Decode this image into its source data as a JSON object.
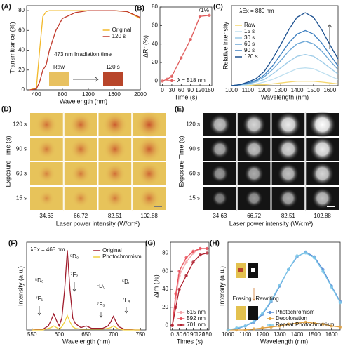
{
  "chart_data": [
    {
      "type": "line",
      "panel": "(A)",
      "xlabel": "Wavelength (nm)",
      "ylabel": "Transmittance (%)",
      "x": [
        300,
        400,
        450,
        500,
        550,
        600,
        700,
        800,
        1000,
        1200,
        1600,
        1800,
        2000
      ],
      "series": [
        {
          "name": "Original",
          "color": "#f2b829",
          "values": [
            0,
            2,
            40,
            74,
            79,
            80,
            80,
            80,
            80,
            80,
            80,
            79,
            72
          ]
        },
        {
          "name": "120 s",
          "color": "#c0392b",
          "values": [
            0,
            1,
            8,
            20,
            25,
            40,
            60,
            72,
            78,
            80,
            80,
            79,
            73
          ]
        }
      ],
      "xlim": [
        250,
        2000
      ],
      "ylim": [
        0,
        85
      ],
      "xticks": [
        400,
        800,
        1200,
        1600,
        2000
      ],
      "yticks": [
        0,
        20,
        40,
        60,
        80
      ],
      "legend": "center-right",
      "markers": false,
      "annotations": [
        "473 nm Irradiation time",
        "Raw",
        "120 s"
      ]
    },
    {
      "type": "line",
      "panel": "(B)",
      "xlabel": "Time (s)",
      "ylabel": "ΔRr (%)",
      "x": [
        0,
        15,
        30,
        60,
        90,
        120,
        150
      ],
      "series": [
        {
          "name": "λ = 518 nm",
          "color": "#e05a5a",
          "values": [
            0,
            2,
            5,
            25,
            45,
            70,
            71
          ]
        }
      ],
      "xlim": [
        -8,
        158
      ],
      "ylim": [
        -5,
        80
      ],
      "xticks": [
        0,
        30,
        60,
        90,
        120,
        150
      ],
      "yticks": [
        0,
        20,
        40,
        60,
        80
      ],
      "legend": "lower-right",
      "markers": true,
      "annotations": [
        "71%"
      ]
    },
    {
      "type": "line",
      "panel": "(C)",
      "xlabel": "Wavelength (nm)",
      "ylabel": "Relative intensity",
      "x": [
        1000,
        1050,
        1100,
        1150,
        1200,
        1250,
        1300,
        1350,
        1400,
        1450,
        1500,
        1550,
        1600,
        1650
      ],
      "series": [
        {
          "name": "Raw",
          "color": "#f5d76e",
          "values": [
            0,
            0,
            0,
            0.01,
            0.01,
            0.02,
            0.03,
            0.04,
            0.05,
            0.05,
            0.05,
            0.04,
            0.03,
            0.02
          ]
        },
        {
          "name": "15 s",
          "color": "#bfe0f0",
          "values": [
            0,
            0,
            0.01,
            0.02,
            0.04,
            0.07,
            0.11,
            0.15,
            0.19,
            0.2,
            0.19,
            0.15,
            0.11,
            0.07
          ]
        },
        {
          "name": "30 s",
          "color": "#9ccbe8",
          "values": [
            0,
            0.01,
            0.02,
            0.04,
            0.07,
            0.13,
            0.2,
            0.27,
            0.33,
            0.35,
            0.33,
            0.27,
            0.2,
            0.13
          ]
        },
        {
          "name": "60 s",
          "color": "#6aa6d6",
          "values": [
            0,
            0.01,
            0.02,
            0.05,
            0.1,
            0.18,
            0.28,
            0.39,
            0.47,
            0.5,
            0.47,
            0.39,
            0.28,
            0.18
          ]
        },
        {
          "name": "90 s",
          "color": "#3d7fc0",
          "values": [
            0,
            0.01,
            0.03,
            0.06,
            0.12,
            0.22,
            0.35,
            0.48,
            0.58,
            0.62,
            0.58,
            0.48,
            0.35,
            0.22
          ]
        },
        {
          "name": "120 s",
          "color": "#1a4f8f",
          "values": [
            0,
            0.01,
            0.04,
            0.08,
            0.16,
            0.3,
            0.46,
            0.63,
            0.77,
            0.82,
            0.77,
            0.63,
            0.46,
            0.3
          ]
        }
      ],
      "xlim": [
        1000,
        1650
      ],
      "ylim": [
        0,
        0.9
      ],
      "xticks": [
        1000,
        1100,
        1200,
        1300,
        1400,
        1500,
        1600
      ],
      "legend": "upper-left",
      "markers": false,
      "annotations": [
        "λEx = 880 nm"
      ]
    },
    {
      "type": "image-grid",
      "panel": "(D)",
      "xlabel": "Laser power intensity (W/cm²)",
      "ylabel": "Exposure Time (s)",
      "rows": [
        "120 s",
        "90 s",
        "60 s",
        "15 s"
      ],
      "columns": [
        34.63,
        66.72,
        82.51,
        102.88
      ],
      "style": "color"
    },
    {
      "type": "image-grid",
      "panel": "(E)",
      "xlabel": "Laser power intensity (W/cm²)",
      "ylabel": "Exposure Time (s)",
      "rows": [
        "120 s",
        "90 s",
        "60 s",
        "15 s"
      ],
      "columns": [
        34.63,
        66.72,
        82.51,
        102.88
      ],
      "style": "gray"
    },
    {
      "type": "line",
      "panel": "(F)",
      "xlabel": "Wavelength (nm)",
      "ylabel": "Intensity (a.u.)",
      "x": [
        550,
        570,
        580,
        585,
        590,
        595,
        600,
        605,
        610,
        615,
        620,
        625,
        630,
        640,
        650,
        660,
        680,
        690,
        695,
        700,
        705,
        710,
        720,
        740,
        750
      ],
      "series": [
        {
          "name": "Original",
          "color": "#a01c2c",
          "values": [
            0,
            0.01,
            0.05,
            0.12,
            0.2,
            0.12,
            0.05,
            0.15,
            0.5,
            1.0,
            0.5,
            0.15,
            0.08,
            0.03,
            0.05,
            0.02,
            0.02,
            0.05,
            0.1,
            0.17,
            0.1,
            0.04,
            0.01,
            0,
            0
          ]
        },
        {
          "name": "Photochromism",
          "color": "#f0d040",
          "values": [
            0,
            0,
            0.02,
            0.03,
            0.05,
            0.03,
            0.01,
            0.04,
            0.1,
            0.18,
            0.1,
            0.04,
            0.02,
            0.01,
            0.01,
            0.01,
            0.01,
            0.02,
            0.03,
            0.05,
            0.03,
            0.01,
            0,
            0,
            0
          ]
        }
      ],
      "xlim": [
        540,
        760
      ],
      "ylim": [
        0,
        1.1
      ],
      "xticks": [
        550,
        600,
        650,
        700,
        750
      ],
      "legend": "upper-right",
      "markers": false,
      "annotations": [
        "λEx = 465 nm",
        "⁵D₀",
        "⁷F₁",
        "⁵D₀",
        "⁷F₂",
        "⁵D₀",
        "⁷F₃",
        "⁵D₀",
        "⁷F₄"
      ]
    },
    {
      "type": "line",
      "panel": "(G)",
      "xlabel": "Times (s)",
      "ylabel": "ΔIm (%)",
      "x": [
        0,
        15,
        30,
        60,
        90,
        120,
        150
      ],
      "series": [
        {
          "name": "615 nm",
          "color": "#f4a3a8",
          "values": [
            0,
            30,
            55,
            70,
            80,
            85,
            85
          ]
        },
        {
          "name": "592 nm",
          "color": "#e8505b",
          "values": [
            0,
            35,
            60,
            75,
            82,
            85,
            85
          ]
        },
        {
          "name": "701 nm",
          "color": "#b0202f",
          "values": [
            0,
            20,
            40,
            55,
            70,
            78,
            80
          ]
        }
      ],
      "xlim": [
        -8,
        158
      ],
      "ylim": [
        -5,
        92
      ],
      "xticks": [
        0,
        30,
        60,
        90,
        120,
        150
      ],
      "yticks": [
        0,
        20,
        40,
        60,
        80
      ],
      "legend": "lower-right",
      "markers": true
    },
    {
      "type": "line",
      "panel": "(H)",
      "xlabel": "Wavelength (nm)",
      "ylabel": "Intensity (a.u.)",
      "x": [
        1000,
        1050,
        1100,
        1150,
        1200,
        1250,
        1300,
        1350,
        1400,
        1450,
        1500,
        1550,
        1600,
        1650
      ],
      "series": [
        {
          "name": "Photochromism",
          "color": "#5b8fd6",
          "values": [
            0,
            0.01,
            0.04,
            0.08,
            0.16,
            0.29,
            0.45,
            0.62,
            0.75,
            0.8,
            0.75,
            0.62,
            0.45,
            0.29
          ]
        },
        {
          "name": "Decoloration",
          "color": "#e0a040",
          "values": [
            0,
            0,
            0,
            0.01,
            0.02,
            0.03,
            0.04,
            0.06,
            0.07,
            0.08,
            0.07,
            0.06,
            0.04,
            0.03
          ]
        },
        {
          "name": "Repeat Photochromism",
          "color": "#7cc7e8",
          "values": [
            0,
            0.02,
            0.04,
            0.09,
            0.17,
            0.3,
            0.46,
            0.62,
            0.76,
            0.79,
            0.74,
            0.6,
            0.44,
            0.28
          ]
        }
      ],
      "xlim": [
        1000,
        1650
      ],
      "ylim": [
        0,
        0.9
      ],
      "xticks": [
        1000,
        1100,
        1200,
        1300,
        1400,
        1500,
        1600
      ],
      "legend": "lower-right",
      "markers": true,
      "annotations": [
        "Erasing",
        "Rewriting"
      ]
    }
  ]
}
